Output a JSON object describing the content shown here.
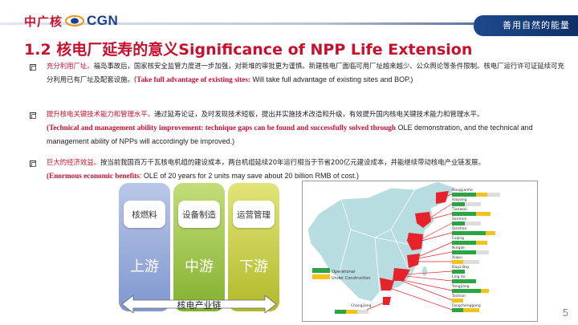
{
  "header": {
    "logo_cn": "中广核",
    "logo_en": "CGN",
    "slogan": "善用自然的能量"
  },
  "title": "1.2 核电厂延寿的意义Significance of NPP Life Extension",
  "bullets": [
    {
      "highlight": "充分利用厂址。",
      "text": "福岛事故后，国家核安全监管力度进一步加强，对新堆的审批更为谨慎。新建核电厂面临可用厂址越来越少、公众舆论等条件限制。核电厂运行许可证延续可充分利用已有厂址及配套设施。(",
      "en_bold": "Take full advantage of existing sites:",
      "en_text": " Will take full advantage of existing sites and BOP.)"
    },
    {
      "highlight": "提升核电关键技术能力和管理水平。",
      "text": "通过延寿论证，及时发现技术短板，提出并实施技术改造和升级，有效提升国内核电关键技术能力和管理水平。",
      "en_open": "(",
      "en_bold": "Technical and management ability improvement: technique gaps can be found and successfully solved through",
      "en_text": " OLE demonstration, and the technical and management ability of NPPs will accordingly be improved.)"
    },
    {
      "highlight": "巨大的经济效益。",
      "text": "按当前我国百万千瓦核电机组的建设成本，两台机组延续20年运行相当于节省200亿元建设成本，并能继续带动核电产业链发展。",
      "en_open": "(",
      "en_bold": "Enormous economic benefits",
      "en_text": ": OLE of 20 years for 2 units may save about 20 billion RMB of cost.)"
    }
  ],
  "chain": {
    "columns": [
      {
        "box": "核燃料",
        "stage": "上游"
      },
      {
        "box": "设备制造",
        "stage": "中游"
      },
      {
        "box": "运营管理",
        "stage": "下游"
      }
    ],
    "label": "核电产业链"
  },
  "map": {
    "legend": [
      "Operational",
      "Under Construction"
    ],
    "site_labels": [
      "Hongyanhe",
      "Haiyang",
      "Tianwan",
      "Sanmen",
      "Qinshan",
      "Fuqing",
      "Ningde",
      "Xiapu",
      "Daya Bay",
      "Ling Ao",
      "Yangjiang",
      "Taishan",
      "Fangchenggang",
      "Changjiang"
    ],
    "colors": {
      "land": "#b7dde1",
      "nuclear_region": "#e8222a",
      "operational_bar": "#2da443",
      "construction_bar": "#f2c31a"
    }
  },
  "page_number": "5"
}
